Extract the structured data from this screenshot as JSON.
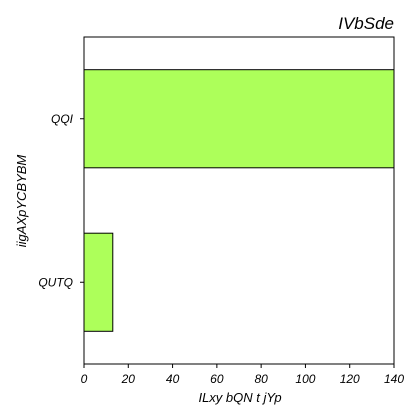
{
  "chart_data": {
    "type": "bar",
    "orientation": "horizontal",
    "title": "IVbSde",
    "xlabel": "ILxy bQN t jYp",
    "ylabel": "iigAXpYCBYBM",
    "categories": [
      "QQI",
      "QUTQ"
    ],
    "values": [
      140,
      13
    ],
    "xlim": [
      0,
      140
    ],
    "xticks": [
      "0",
      "20",
      "40",
      "60",
      "80",
      "100",
      "120",
      "140"
    ],
    "grid": false,
    "bar_color": "#adff5a",
    "edge_color": "#000000"
  }
}
